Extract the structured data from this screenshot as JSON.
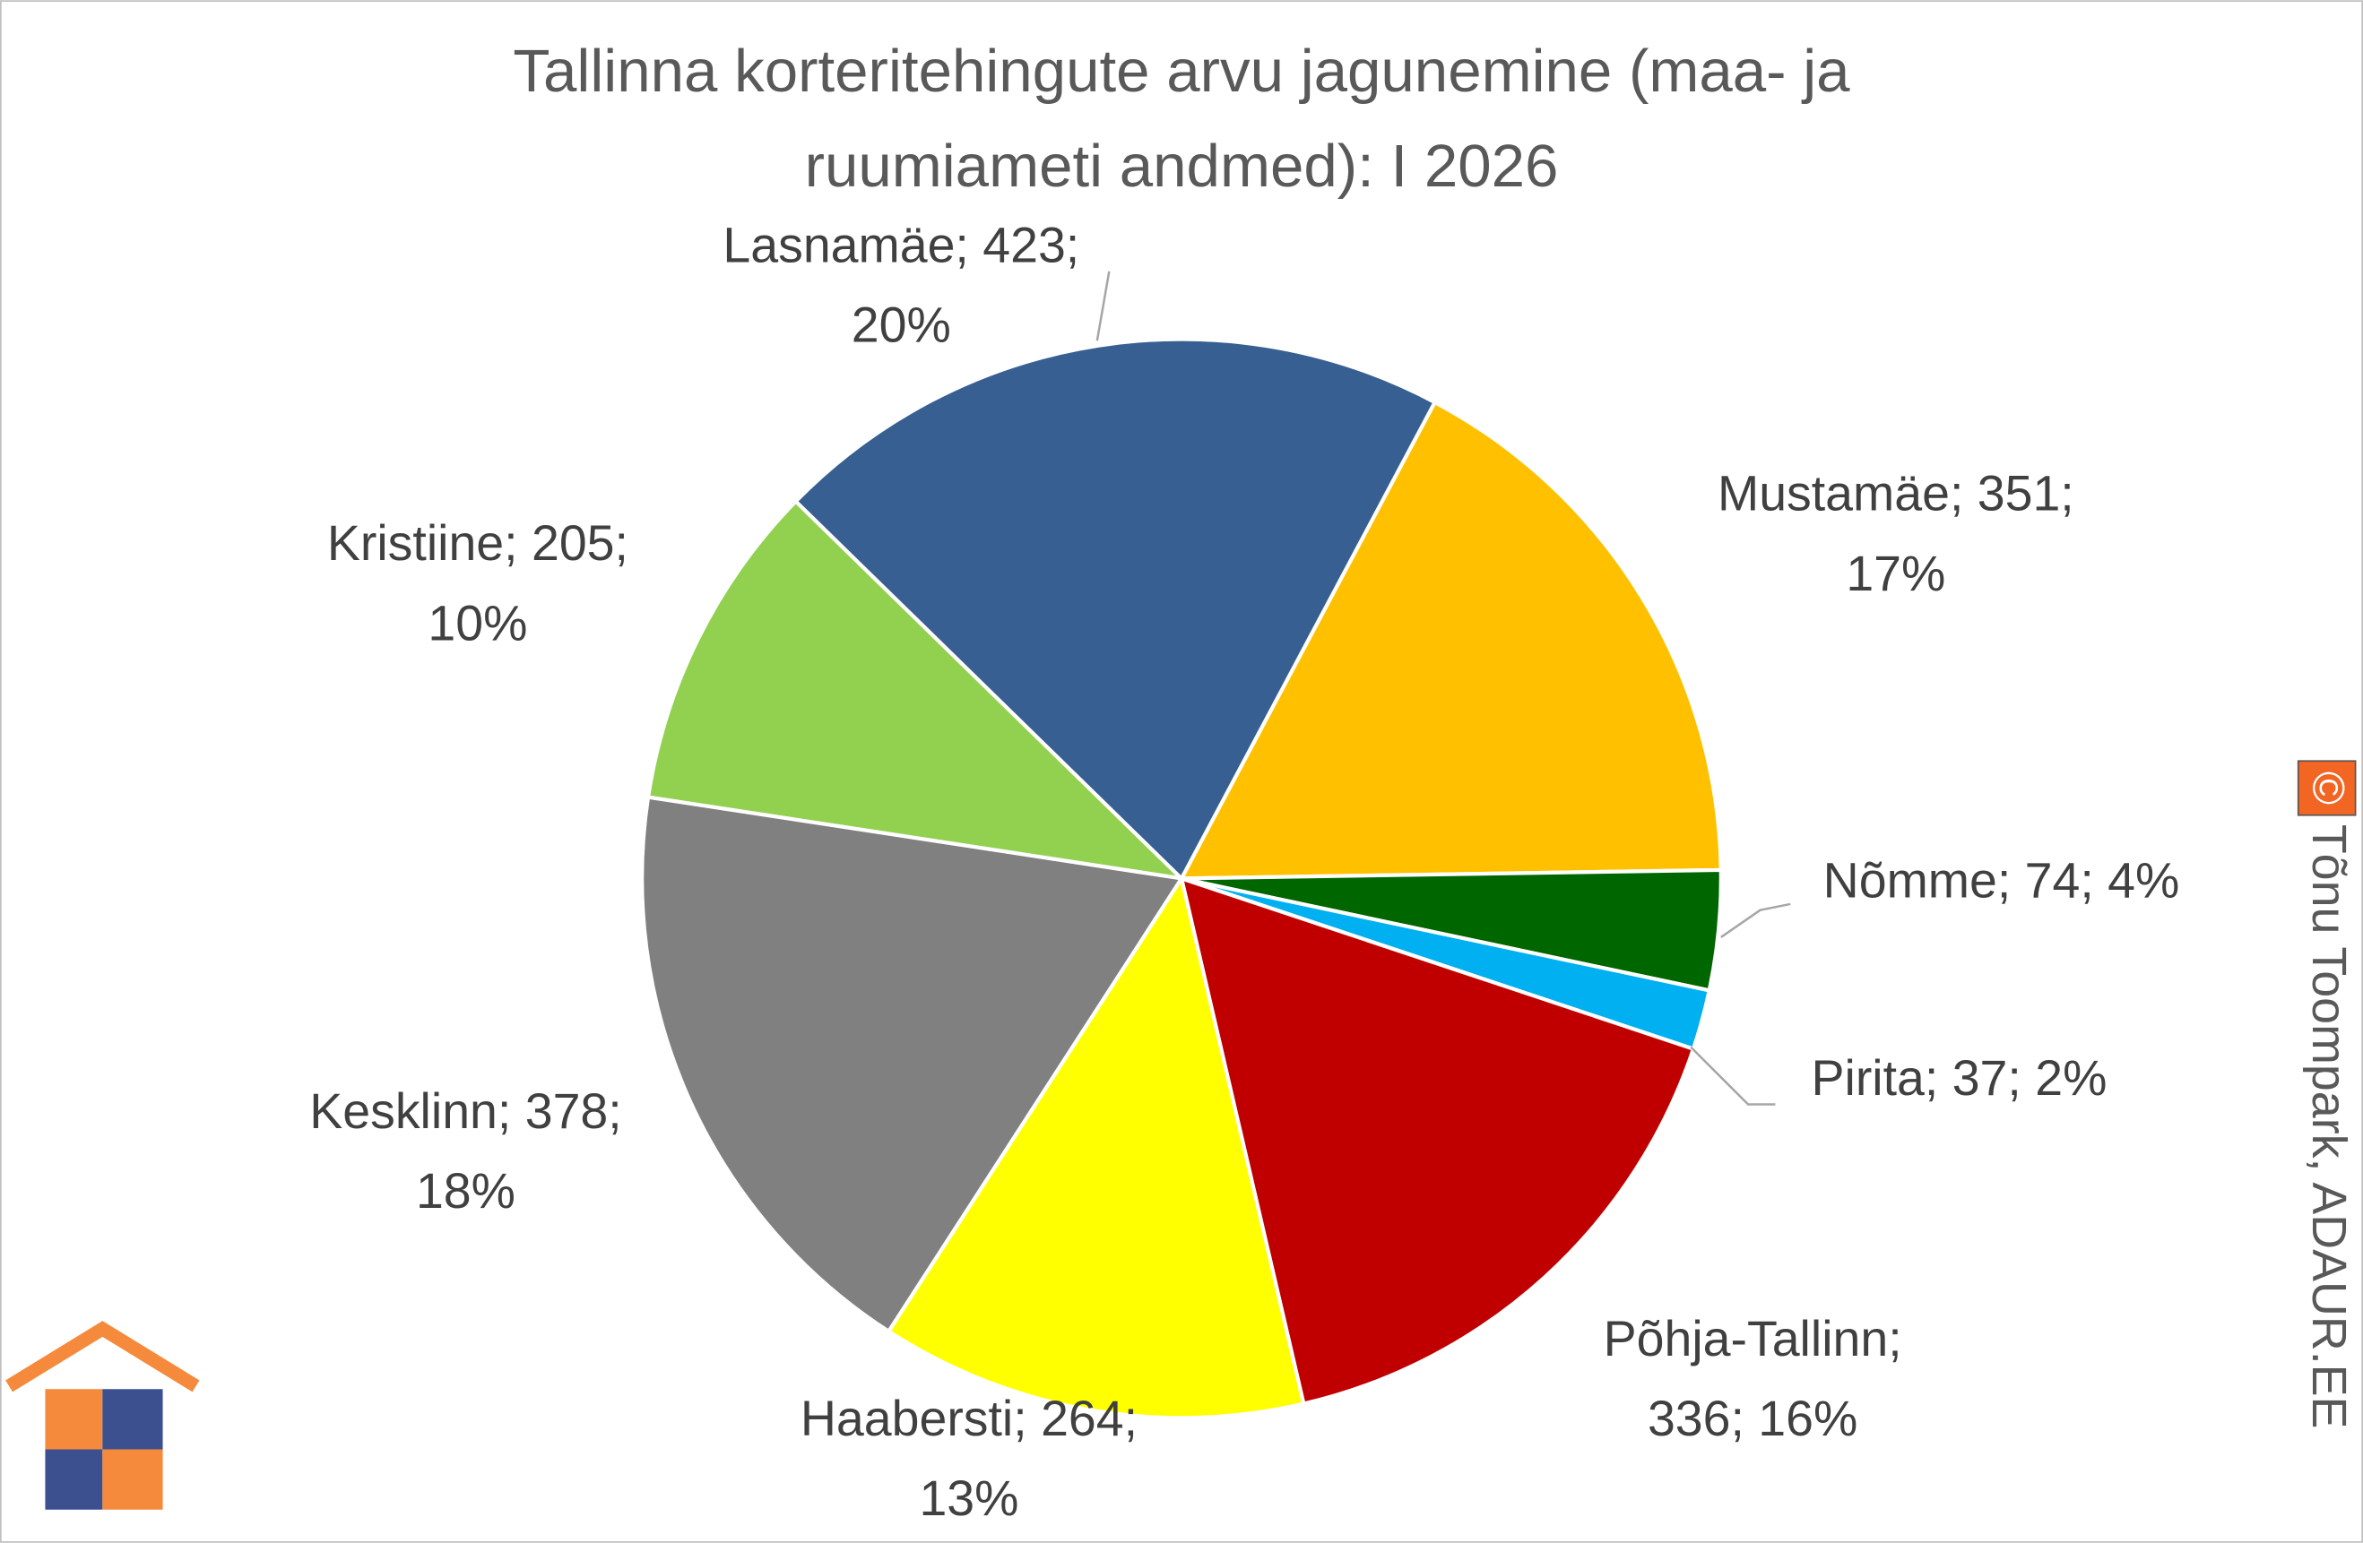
{
  "chart_data": {
    "type": "pie",
    "title": [
      "Tallinna korteritehingute arvu jagunemine (maa- ja",
      "ruumiameti andmed): I 2026"
    ],
    "categories": [
      "Mustamäe",
      "Nõmme",
      "Pirita",
      "Põhja-Tallinn",
      "Haabersti",
      "Kesklinn",
      "Kristiine",
      "Lasnamäe"
    ],
    "values": [
      351,
      74,
      37,
      336,
      264,
      378,
      205,
      423
    ],
    "percents": [
      17,
      4,
      2,
      16,
      13,
      18,
      10,
      20
    ],
    "value_labels": [
      [
        "Mustamäe; 351;",
        "17%"
      ],
      [
        "Nõmme; 74; 4%"
      ],
      [
        "Pirita; 37; 2%"
      ],
      [
        "Põhja-Tallinn;",
        "336; 16%"
      ],
      [
        "Haabersti; 264;",
        "13%"
      ],
      [
        "Kesklinn; 378;",
        "18%"
      ],
      [
        "Kristiine; 205;",
        "10%"
      ],
      [
        "Lasnamäe; 423;",
        "20%"
      ]
    ],
    "colors": [
      "#ffc000",
      "#006600",
      "#00b0f0",
      "#c00000",
      "#ffff00",
      "#808080",
      "#92d050",
      "#375f91"
    ]
  },
  "watermark": {
    "symbol": "©",
    "text": "Tõnu Toompark, ADAUR.EE"
  }
}
